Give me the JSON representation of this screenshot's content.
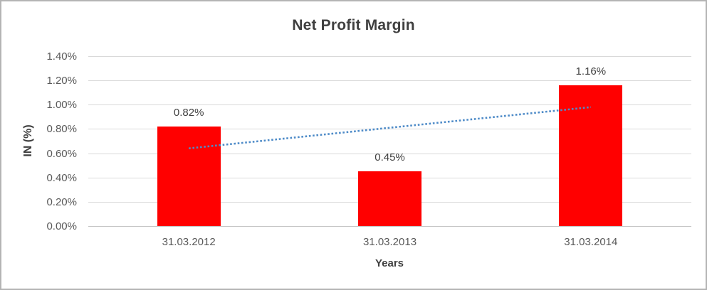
{
  "chart_data": {
    "type": "bar",
    "title": "Net Profit Margin",
    "xlabel": "Years",
    "ylabel": "IN (%)",
    "categories": [
      "31.03.2012",
      "31.03.2013",
      "31.03.2014"
    ],
    "values": [
      0.82,
      0.45,
      1.16
    ],
    "data_labels": [
      "0.82%",
      "0.45%",
      "1.16%"
    ],
    "bar_color": "#ff0000",
    "ylim": [
      0,
      1.4
    ],
    "y_ticks": [
      {
        "value": 0.0,
        "label": "0.00%"
      },
      {
        "value": 0.2,
        "label": "0.20%"
      },
      {
        "value": 0.4,
        "label": "0.40%"
      },
      {
        "value": 0.6,
        "label": "0.60%"
      },
      {
        "value": 0.8,
        "label": "0.80%"
      },
      {
        "value": 1.0,
        "label": "1.00%"
      },
      {
        "value": 1.2,
        "label": "1.20%"
      },
      {
        "value": 1.4,
        "label": "1.40%"
      }
    ],
    "grid": true,
    "legend": "none",
    "trendline": {
      "type": "linear",
      "style": "dotted",
      "color": "#4e8bc8",
      "start_value": 0.64,
      "end_value": 0.98
    }
  }
}
